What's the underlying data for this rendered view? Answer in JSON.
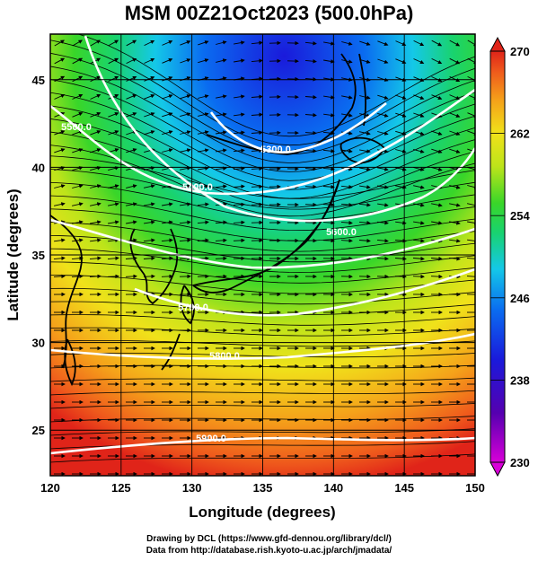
{
  "title": "MSM 00Z21Oct2023 (500.0hPa)",
  "axes": {
    "xlabel": "Longitude (degrees)",
    "ylabel": "Latitude  (degrees)",
    "xticks": [
      120,
      125,
      130,
      135,
      140,
      145,
      150
    ],
    "yticks": [
      25,
      30,
      35,
      40,
      45
    ],
    "xlim": [
      120,
      150
    ],
    "ylim": [
      22.4,
      47.6
    ]
  },
  "colorbar": {
    "min": 230,
    "max": 270,
    "ticks": [
      270,
      262,
      254,
      246,
      238,
      230
    ],
    "colors": [
      "#d800d8",
      "#5500b0",
      "#1a1adb",
      "#0a6cf0",
      "#14c8e8",
      "#19d36e",
      "#39d629",
      "#bde41a",
      "#f0e21a",
      "#f5a21a",
      "#ef5a1c",
      "#e02419"
    ]
  },
  "contours": [
    {
      "label": "5300.0"
    },
    {
      "label": "5400.0"
    },
    {
      "label": "5500.0"
    },
    {
      "label": "5600.0"
    },
    {
      "label": "5700.0"
    },
    {
      "label": "5800.0"
    },
    {
      "label": "5900.0"
    }
  ],
  "credits": {
    "line1": "Drawing by DCL (https://www.gfd-dennou.org/library/dcl/)",
    "line2": "Data from http://database.rish.kyoto-u.ac.jp/arch/jmadata/"
  }
}
